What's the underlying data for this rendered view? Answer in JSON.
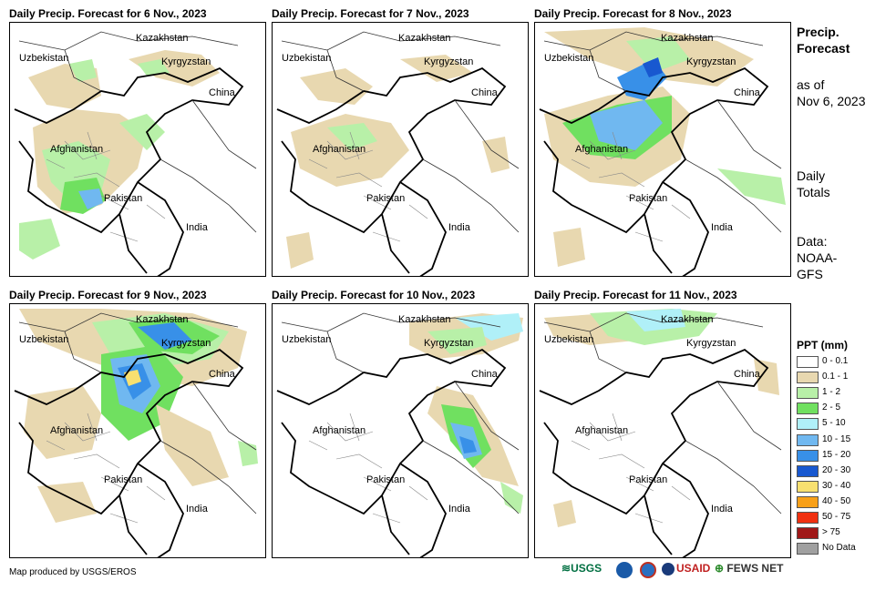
{
  "panels": [
    {
      "title": "Daily Precip. Forecast for 6 Nov., 2023"
    },
    {
      "title": "Daily Precip. Forecast for 7 Nov., 2023"
    },
    {
      "title": "Daily Precip. Forecast for 8 Nov., 2023"
    },
    {
      "title": "Daily Precip. Forecast for 9 Nov., 2023"
    },
    {
      "title": "Daily Precip. Forecast for 10 Nov., 2023"
    },
    {
      "title": "Daily Precip. Forecast for 11 Nov., 2023"
    }
  ],
  "map_labels": {
    "kazakhstan": "Kazakhstan",
    "uzbekistan": "Uzbekistan",
    "kyrgyzstan": "Kyrgyzstan",
    "china": "China",
    "afghanistan": "Afghanistan",
    "pakistan": "Pakistan",
    "india": "India"
  },
  "sidebar": {
    "title_line1": "Precip.",
    "title_line2": "Forecast",
    "asof_line1": "as of",
    "asof_line2": "Nov 6, 2023",
    "daily_line1": "Daily",
    "daily_line2": "Totals",
    "data_line1": "Data:",
    "data_line2": "NOAA-",
    "data_line3": "GFS"
  },
  "legend": {
    "title": "PPT (mm)",
    "items": [
      {
        "label": "0 - 0.1",
        "color": "#ffffff"
      },
      {
        "label": "0.1 - 1",
        "color": "#e8d8b0"
      },
      {
        "label": "1 - 2",
        "color": "#b8f0a8"
      },
      {
        "label": "2 - 5",
        "color": "#70e060"
      },
      {
        "label": "5 - 10",
        "color": "#b0f0f8"
      },
      {
        "label": "10 - 15",
        "color": "#70b8f0"
      },
      {
        "label": "15 - 20",
        "color": "#3890e8"
      },
      {
        "label": "20 - 30",
        "color": "#1858d0"
      },
      {
        "label": "30 - 40",
        "color": "#f8e070"
      },
      {
        "label": "40 - 50",
        "color": "#f8a018"
      },
      {
        "label": "50 - 75",
        "color": "#f03010"
      },
      {
        "label": "> 75",
        "color": "#a01818"
      },
      {
        "label": "No Data",
        "color": "#a0a0a0"
      }
    ]
  },
  "footer": {
    "credit": "Map produced by USGS/EROS"
  },
  "logos": {
    "usgs": "USGS",
    "usaid": "USAID",
    "fews": "FEWS NET"
  }
}
